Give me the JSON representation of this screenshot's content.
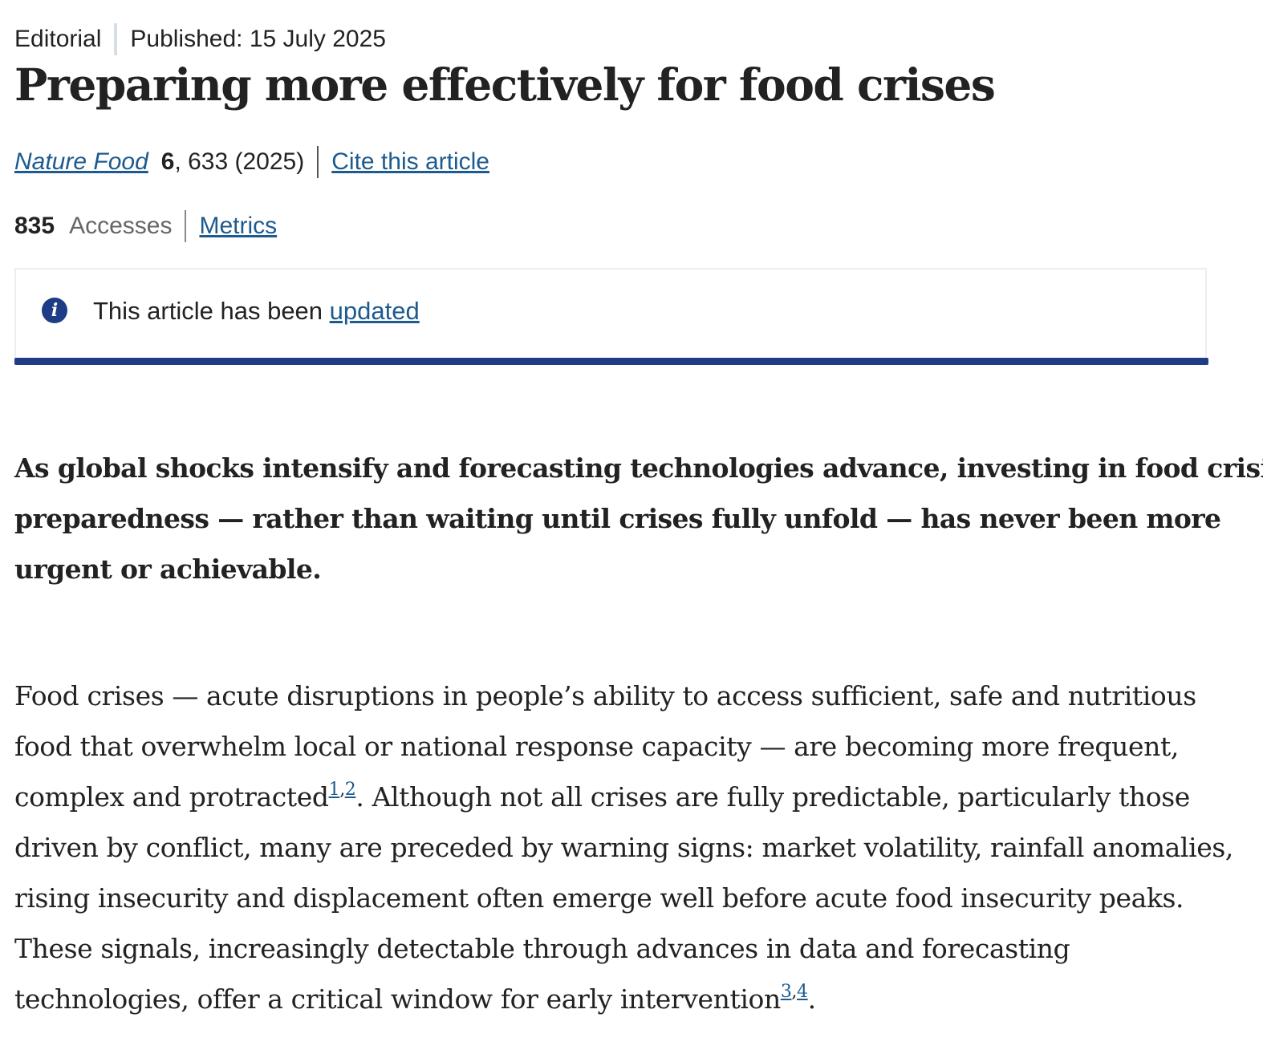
{
  "header": {
    "article_type": "Editorial",
    "published": "Published: 15 July 2025"
  },
  "title": "Preparing more effectively for food crises",
  "citation": {
    "journal": "Nature Food",
    "volume": "6",
    "pages_year": ", 633 (2025)",
    "cite_link": "Cite this article"
  },
  "metrics": {
    "count": "835",
    "label": "Accesses",
    "link": "Metrics"
  },
  "notice": {
    "icon": "info-icon",
    "text": "This article has been ",
    "link": "updated",
    "accent_color": "#1e3d86"
  },
  "standfirst": {
    "lines": [
      "As global shocks intensify and forecasting technologies advance, investing in food crisis",
      "preparedness — rather than waiting until crises fully unfold — has never been more",
      "urgent or achievable."
    ]
  },
  "body": {
    "line1": "Food crises — acute disruptions in people’s ability to access sufficient, safe and nutritious",
    "line2": "food that overwhelm local or national response capacity — are becoming more frequent,",
    "line3_pre": "complex and protracted",
    "ref1": "1",
    "ref_sep1": ",",
    "ref2": "2",
    "line3_post": ". Although not all crises are fully predictable, particularly those",
    "line4": "driven by conflict, many are preceded by warning signs: market volatility, rainfall anomalies,",
    "line5": "rising insecurity and displacement often emerge well before acute food insecurity peaks.",
    "line6": "These signals, increasingly detectable through advances in data and forecasting",
    "line7_pre": "technologies, offer a critical window for early intervention",
    "ref3": "3",
    "ref_sep2": ",",
    "ref4": "4",
    "line7_post": "."
  }
}
